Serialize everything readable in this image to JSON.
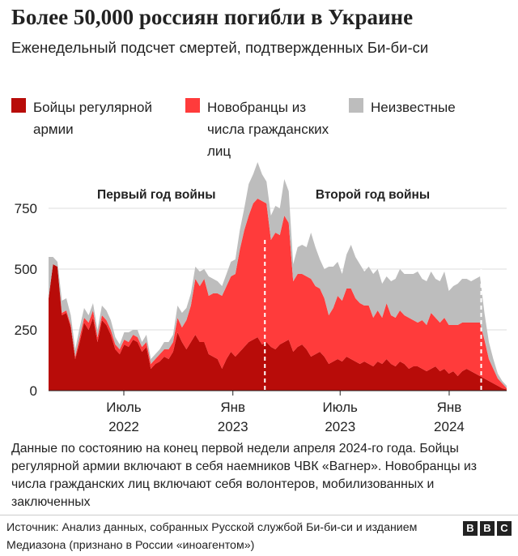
{
  "header": {
    "title": "Более 50,000 россиян погибли в Украине",
    "subtitle": "Еженедельный подсчет смертей, подтвержденных Би-би-си"
  },
  "legend": [
    {
      "label": "Бойцы регулярной армии",
      "color": "#b80c09"
    },
    {
      "label": "Новобранцы из числа гражданских лиц",
      "color": "#ff3b3b"
    },
    {
      "label": "Неизвестные",
      "color": "#bdbdbd"
    }
  ],
  "chart_data": {
    "type": "area",
    "stacked": true,
    "x_unit": "week",
    "x_start": "2022-02-24",
    "x_end": "2024-04-07",
    "ylim": [
      0,
      900
    ],
    "yticks": [
      0,
      250,
      500,
      750
    ],
    "grid": true,
    "xticks": [
      {
        "date": "2022-07-01",
        "label": "Июль",
        "year": "2022"
      },
      {
        "date": "2023-01-01",
        "label": "Янв",
        "year": "2023"
      },
      {
        "date": "2023-07-01",
        "label": "Июль",
        "year": "2023"
      },
      {
        "date": "2024-01-01",
        "label": "Янв",
        "year": "2024"
      }
    ],
    "annotations": [
      {
        "text": "Первый год войны",
        "date": "2022-08-25",
        "y": 790
      },
      {
        "text": "Второй год войны",
        "date": "2023-08-25",
        "y": 790
      }
    ],
    "markers": [
      "2023-02-24",
      "2024-02-24"
    ],
    "series": [
      {
        "name": "Бойцы регулярной армии",
        "color": "#b80c09",
        "values": [
          380,
          520,
          510,
          310,
          320,
          260,
          130,
          200,
          280,
          250,
          300,
          200,
          290,
          270,
          230,
          170,
          150,
          190,
          180,
          210,
          200,
          160,
          180,
          90,
          110,
          120,
          140,
          130,
          160,
          240,
          200,
          170,
          200,
          230,
          200,
          200,
          150,
          140,
          130,
          90,
          130,
          160,
          140,
          160,
          180,
          200,
          210,
          220,
          190,
          200,
          180,
          170,
          190,
          200,
          210,
          160,
          180,
          190,
          170,
          140,
          150,
          160,
          140,
          110,
          120,
          130,
          120,
          140,
          130,
          120,
          110,
          120,
          110,
          100,
          120,
          110,
          130,
          110,
          100,
          120,
          110,
          90,
          100,
          100,
          90,
          80,
          90,
          100,
          80,
          90,
          70,
          80,
          60,
          80,
          90,
          80,
          70,
          60,
          50,
          40,
          30,
          20,
          10,
          5
        ]
      },
      {
        "name": "Новобранцы из числа гражданских лиц",
        "color": "#ff3b3b",
        "values": [
          0,
          0,
          0,
          10,
          10,
          10,
          10,
          20,
          20,
          30,
          30,
          20,
          20,
          20,
          20,
          20,
          20,
          20,
          20,
          20,
          20,
          20,
          20,
          20,
          20,
          30,
          30,
          40,
          40,
          60,
          60,
          120,
          150,
          230,
          230,
          260,
          240,
          260,
          270,
          300,
          300,
          310,
          340,
          420,
          480,
          520,
          560,
          570,
          590,
          570,
          440,
          480,
          450,
          520,
          480,
          290,
          300,
          290,
          300,
          320,
          280,
          260,
          240,
          200,
          220,
          260,
          250,
          280,
          290,
          260,
          250,
          230,
          240,
          200,
          210,
          190,
          230,
          200,
          200,
          210,
          200,
          210,
          190,
          180,
          200,
          190,
          230,
          200,
          200,
          210,
          200,
          190,
          210,
          200,
          190,
          200,
          210,
          220,
          160,
          90,
          60,
          30,
          20,
          5
        ]
      },
      {
        "name": "Неизвестные",
        "color": "#bdbdbd",
        "values": [
          170,
          30,
          20,
          50,
          50,
          40,
          30,
          40,
          40,
          30,
          30,
          30,
          40,
          40,
          40,
          30,
          20,
          30,
          40,
          20,
          30,
          20,
          30,
          20,
          20,
          20,
          30,
          30,
          30,
          50,
          60,
          50,
          50,
          50,
          60,
          40,
          80,
          60,
          50,
          40,
          50,
          60,
          60,
          80,
          90,
          130,
          120,
          150,
          110,
          90,
          100,
          110,
          110,
          150,
          130,
          70,
          110,
          120,
          120,
          190,
          160,
          120,
          120,
          200,
          170,
          140,
          110,
          140,
          180,
          170,
          160,
          140,
          160,
          180,
          170,
          140,
          110,
          140,
          160,
          170,
          170,
          180,
          190,
          210,
          170,
          180,
          170,
          160,
          170,
          190,
          140,
          160,
          170,
          180,
          180,
          170,
          180,
          190,
          110,
          70,
          40,
          20,
          10,
          10
        ]
      }
    ]
  },
  "footnote": "Данные по состоянию на конец первой недели апреля 2024-го года. Бойцы регулярной армии включают в себя наемников ЧВК «Вагнер». Новобранцы из числа гражданских лиц включают себя волонтеров, мобилизованных и заключенных",
  "source": "Источник: Анализ данных, собранных Русской службой Би-би-си и изданием Медиазона (признано в России «иноагентом»)",
  "logo": {
    "letters": [
      "B",
      "B",
      "C"
    ]
  }
}
